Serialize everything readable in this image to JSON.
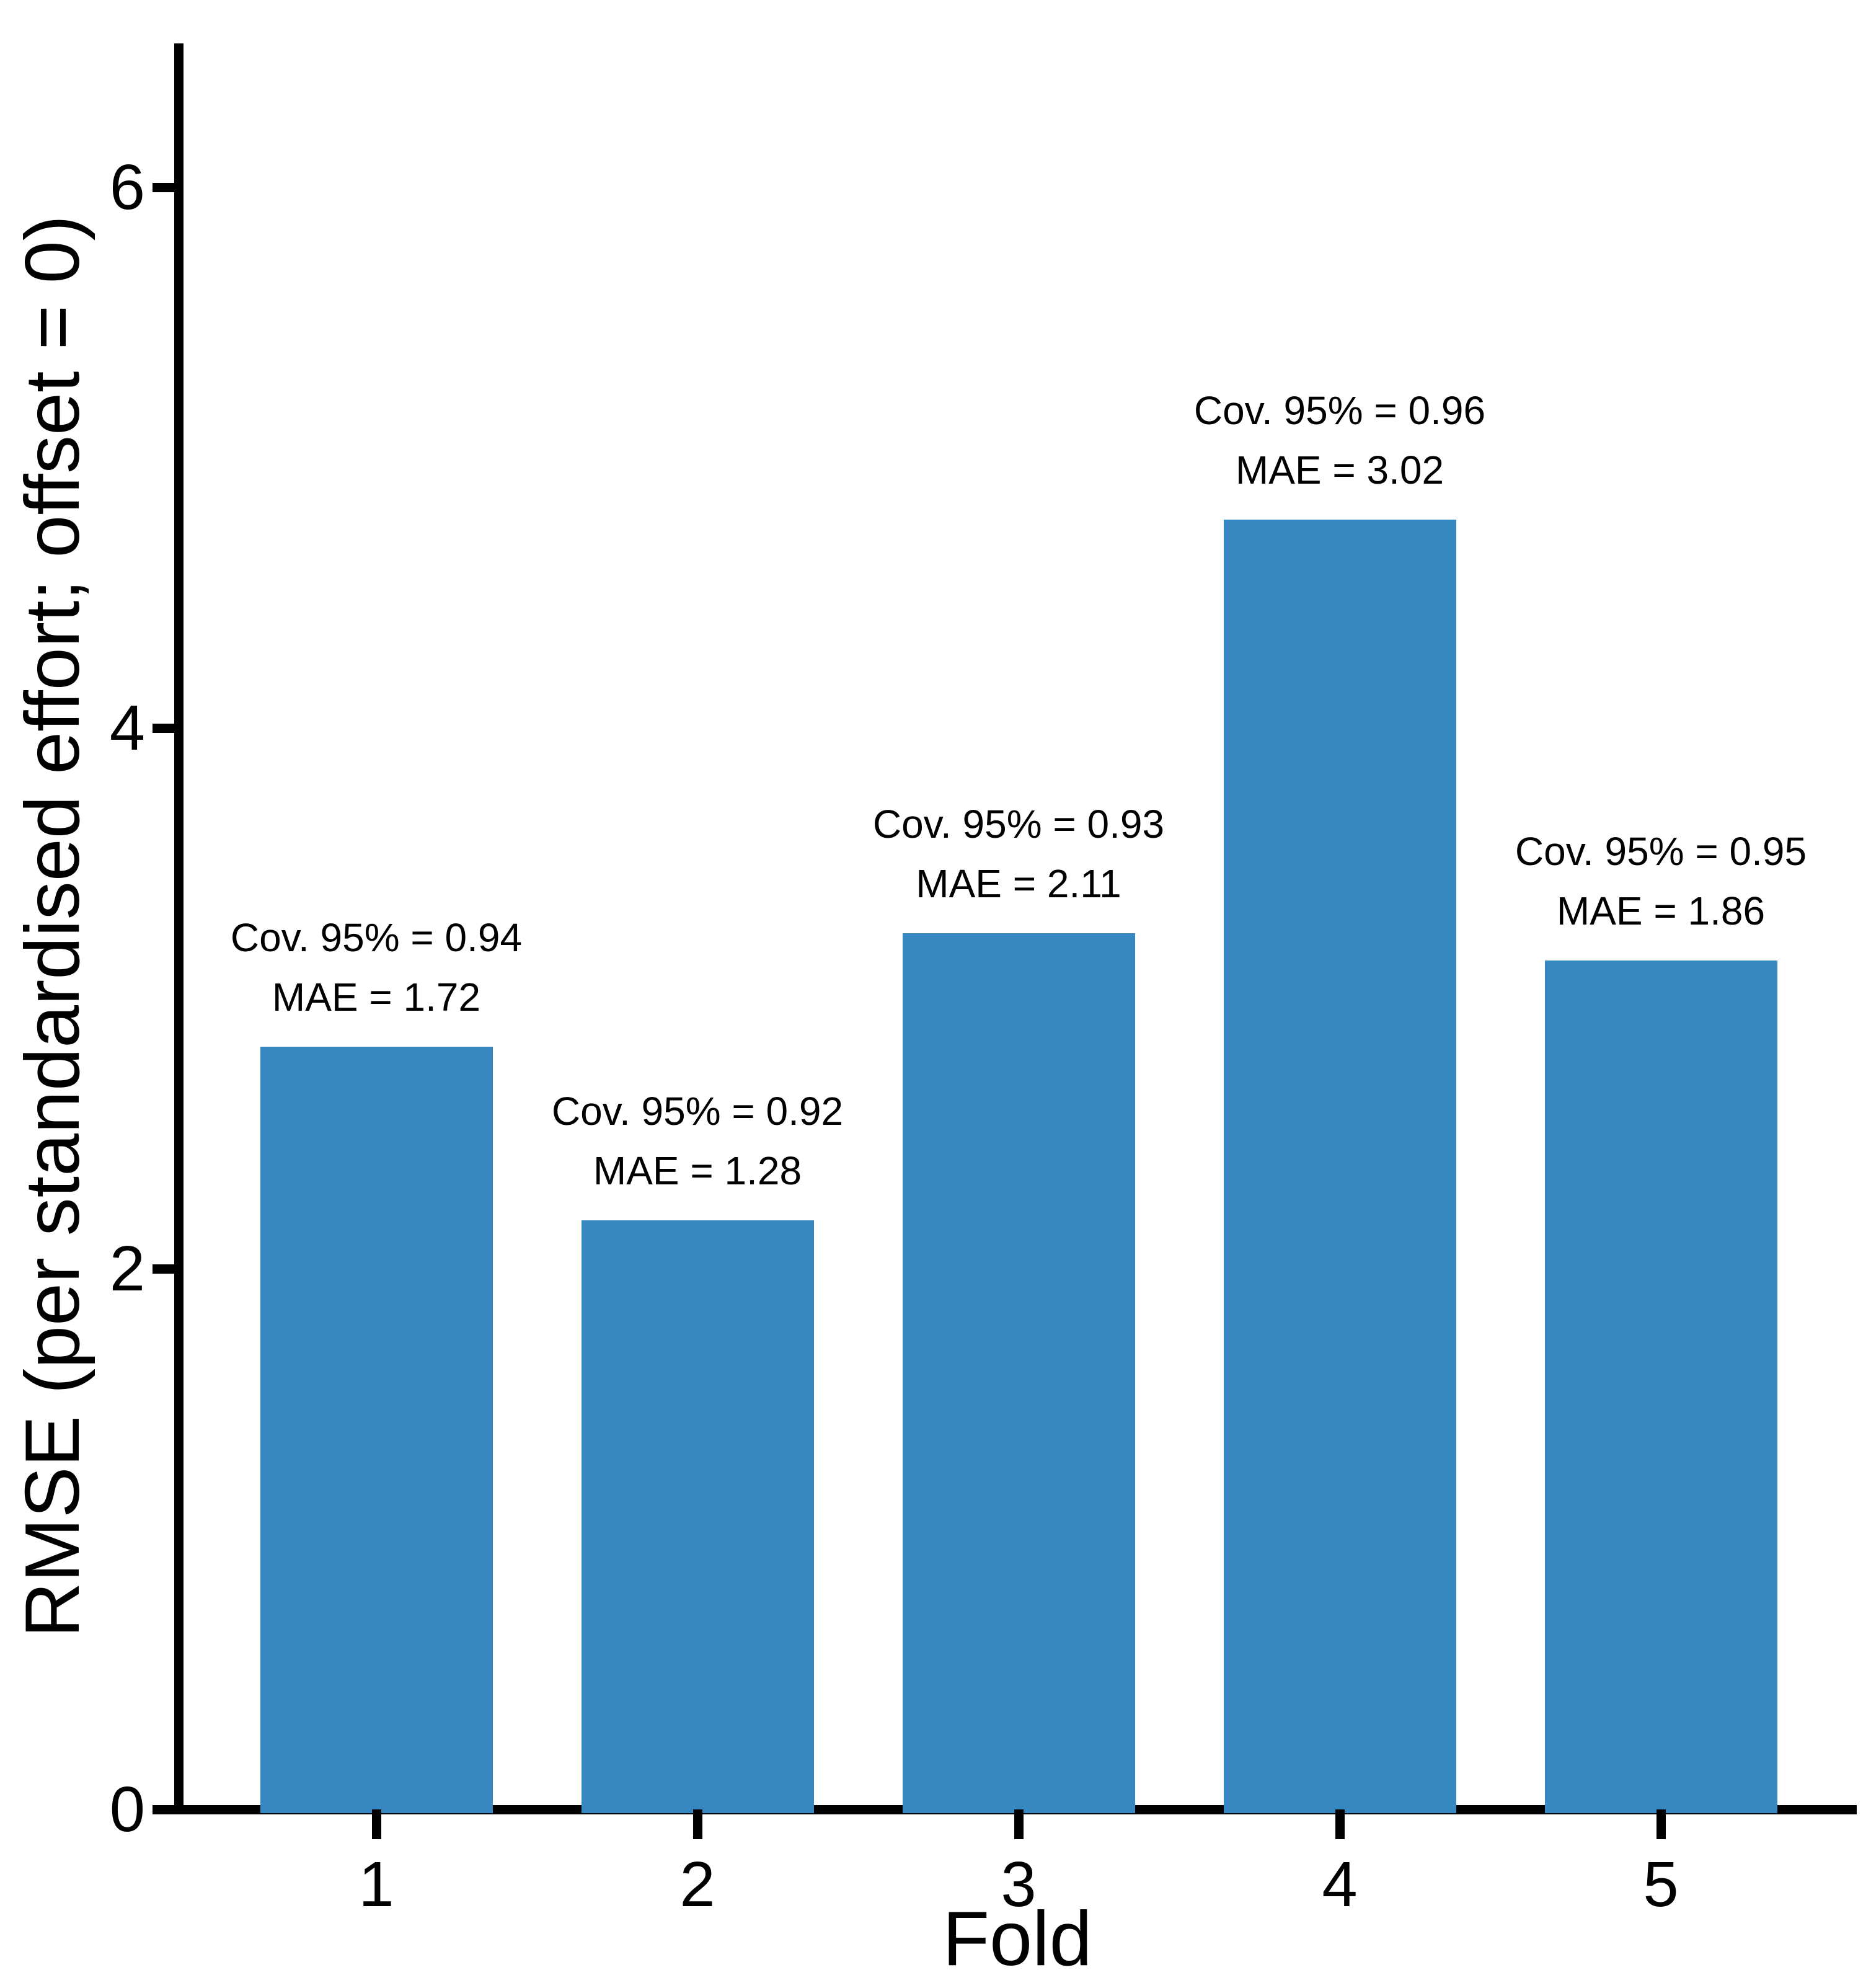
{
  "chart_data": {
    "type": "bar",
    "title": "",
    "xlabel": "Fold",
    "ylabel": "RMSE (per standardised effort; offset = 0)",
    "categories": [
      "1",
      "2",
      "3",
      "4",
      "5"
    ],
    "values": [
      2.82,
      2.18,
      3.24,
      4.77,
      3.14
    ],
    "ylim": [
      0,
      6.5
    ],
    "yticks": [
      "0",
      "2",
      "4",
      "6"
    ],
    "ytick_values": [
      0,
      2,
      4,
      6
    ],
    "grid": false,
    "legend": false,
    "bar_color": "#3787c1",
    "axis_color": "#000000",
    "annotations": [
      {
        "cov_label": "Cov. 95% = 0.94",
        "mae_label": "MAE = 1.72"
      },
      {
        "cov_label": "Cov. 95% = 0.92",
        "mae_label": "MAE = 1.28"
      },
      {
        "cov_label": "Cov. 95% = 0.93",
        "mae_label": "MAE = 2.11"
      },
      {
        "cov_label": "Cov. 95% = 0.96",
        "mae_label": "MAE = 3.02"
      },
      {
        "cov_label": "Cov. 95% = 0.95",
        "mae_label": "MAE = 1.86"
      }
    ],
    "folds": [
      {
        "fold": "1",
        "cov_95": "0.94",
        "mae": "1.72"
      },
      {
        "fold": "2",
        "cov_95": "0.92",
        "mae": "1.28"
      },
      {
        "fold": "3",
        "cov_95": "0.93",
        "mae": "2.11"
      },
      {
        "fold": "4",
        "cov_95": "0.96",
        "mae": "3.02"
      },
      {
        "fold": "5",
        "cov_95": "0.95",
        "mae": "1.86"
      }
    ]
  }
}
